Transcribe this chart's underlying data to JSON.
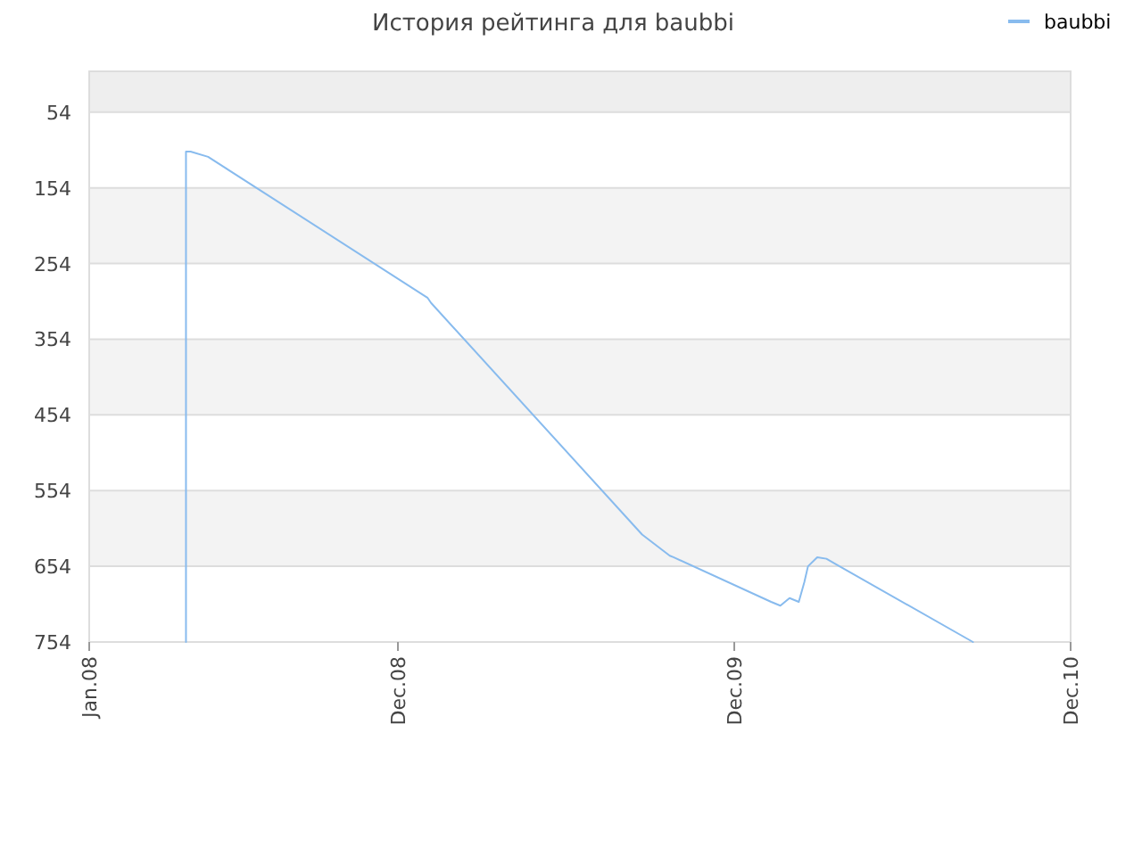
{
  "chart_data": {
    "type": "line",
    "title": "История рейтинга для baubbi",
    "series": [
      {
        "name": "baubbi",
        "color": "#88bbee",
        "x": [
          "2008-04-15",
          "2008-04-15",
          "2008-04-20",
          "2008-05-09",
          "2009-01-02",
          "2009-01-06",
          "2009-08-23",
          "2009-09-22",
          "2009-09-26",
          "2010-01-10",
          "2010-01-20",
          "2010-01-30",
          "2010-02-09",
          "2010-02-15",
          "2010-02-19",
          "2010-03-01",
          "2010-03-11",
          "2010-03-21",
          "2010-08-17"
        ],
        "values": [
          754,
          106,
          106,
          113,
          299,
          306,
          612,
          640,
          642,
          701,
          706,
          696,
          701,
          675,
          654,
          642,
          644,
          651,
          754
        ]
      }
    ],
    "xlim": [
      "2008-01-01",
      "2010-12-01"
    ],
    "xticks": [
      {
        "value": "2008-01-01",
        "label": "Jan.08"
      },
      {
        "value": "2008-12-01",
        "label": "Dec.08"
      },
      {
        "value": "2009-12-01",
        "label": "Dec.09"
      },
      {
        "value": "2010-12-01",
        "label": "Dec.10"
      }
    ],
    "ylim": [
      754,
      0
    ],
    "yticks": [
      54,
      154,
      254,
      354,
      454,
      554,
      654,
      754
    ],
    "bands": [
      {
        "axis": "y",
        "from": 0,
        "to": 54,
        "color": "#eeeeee"
      }
    ],
    "grid": true,
    "legend": "top right",
    "marker": "none",
    "line_style": "solid"
  }
}
